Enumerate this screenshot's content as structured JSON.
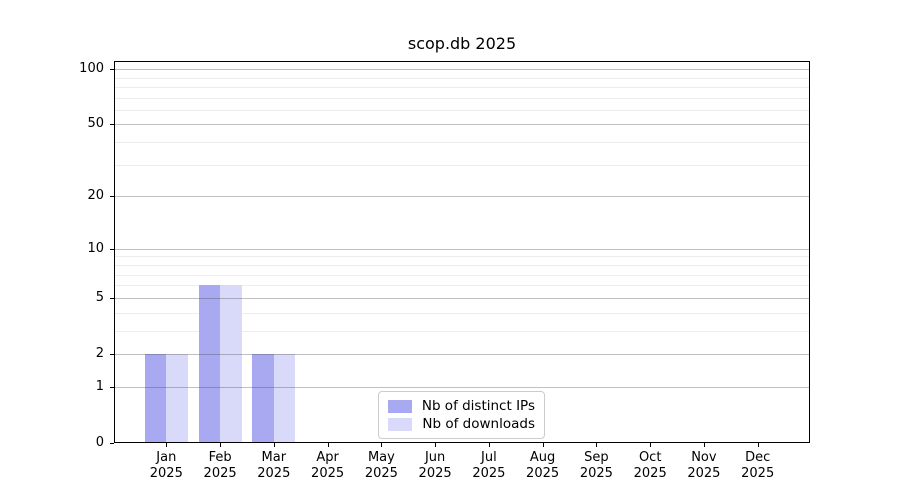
{
  "chart_data": {
    "type": "bar",
    "title": "scop.db 2025",
    "categories": [
      "Jan",
      "Feb",
      "Mar",
      "Apr",
      "May",
      "Jun",
      "Jul",
      "Aug",
      "Sep",
      "Oct",
      "Nov",
      "Dec"
    ],
    "year_label": "2025",
    "series": [
      {
        "name": "Nb of distinct IPs",
        "color": "#a9a9f2",
        "values": [
          2,
          6,
          2,
          0,
          0,
          0,
          0,
          0,
          0,
          0,
          0,
          0
        ]
      },
      {
        "name": "Nb of downloads",
        "color": "#d9d9fa",
        "values": [
          2,
          6,
          2,
          0,
          0,
          0,
          0,
          0,
          0,
          0,
          0,
          0
        ]
      }
    ],
    "xlabel": "",
    "ylabel": "",
    "yscale": "log(1+y)",
    "ylim": [
      0,
      110.5
    ],
    "yticks": [
      0,
      1,
      2,
      5,
      10,
      20,
      50,
      100
    ],
    "y_minor_gridlines": [
      3,
      4,
      6,
      7,
      8,
      9,
      30,
      40,
      60,
      70,
      80,
      90
    ],
    "grid": "horizontal, major and minor",
    "legend_position": "lower center inside plot",
    "colors": {
      "background": "#ffffff",
      "axis": "#000000",
      "text": "#000000",
      "major_grid": "#b6b6b6",
      "minor_grid": "#ededed",
      "legend_border": "#cccccc"
    }
  }
}
